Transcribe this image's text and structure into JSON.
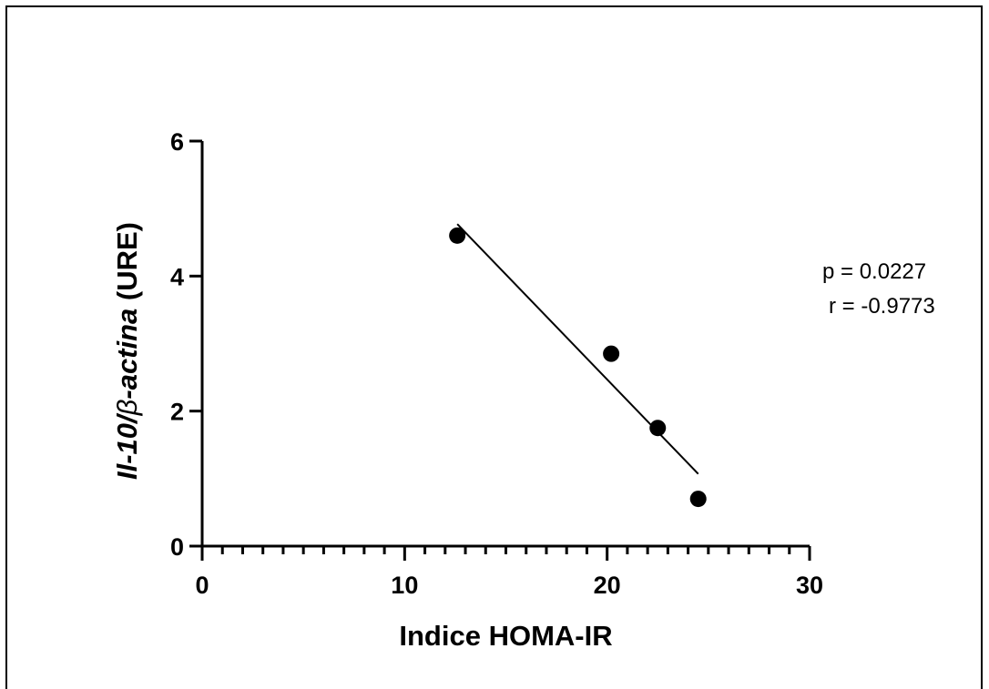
{
  "chart_data": {
    "type": "scatter",
    "xlabel": "Indice HOMA-IR",
    "ylabel_parts": [
      {
        "text": "Il-10/",
        "style": "bold-italic"
      },
      {
        "text": "β",
        "style": "italic"
      },
      {
        "text": "-actina",
        "style": "bold-italic"
      },
      {
        "text": " (URE)",
        "style": "bold"
      }
    ],
    "xlim": [
      0,
      30
    ],
    "ylim": [
      0,
      6
    ],
    "xticks": [
      0,
      10,
      20,
      30
    ],
    "yticks": [
      0,
      2,
      4,
      6
    ],
    "x_minor_step": 1,
    "points": [
      {
        "x": 12.6,
        "y": 4.6
      },
      {
        "x": 20.2,
        "y": 2.85
      },
      {
        "x": 22.5,
        "y": 1.75
      },
      {
        "x": 24.5,
        "y": 0.7
      }
    ],
    "regression_line": {
      "x": [
        12.6,
        24.5
      ],
      "y": [
        4.77,
        1.07
      ]
    },
    "annotations": [
      "p = 0.0227",
      "r = -0.9773"
    ]
  }
}
